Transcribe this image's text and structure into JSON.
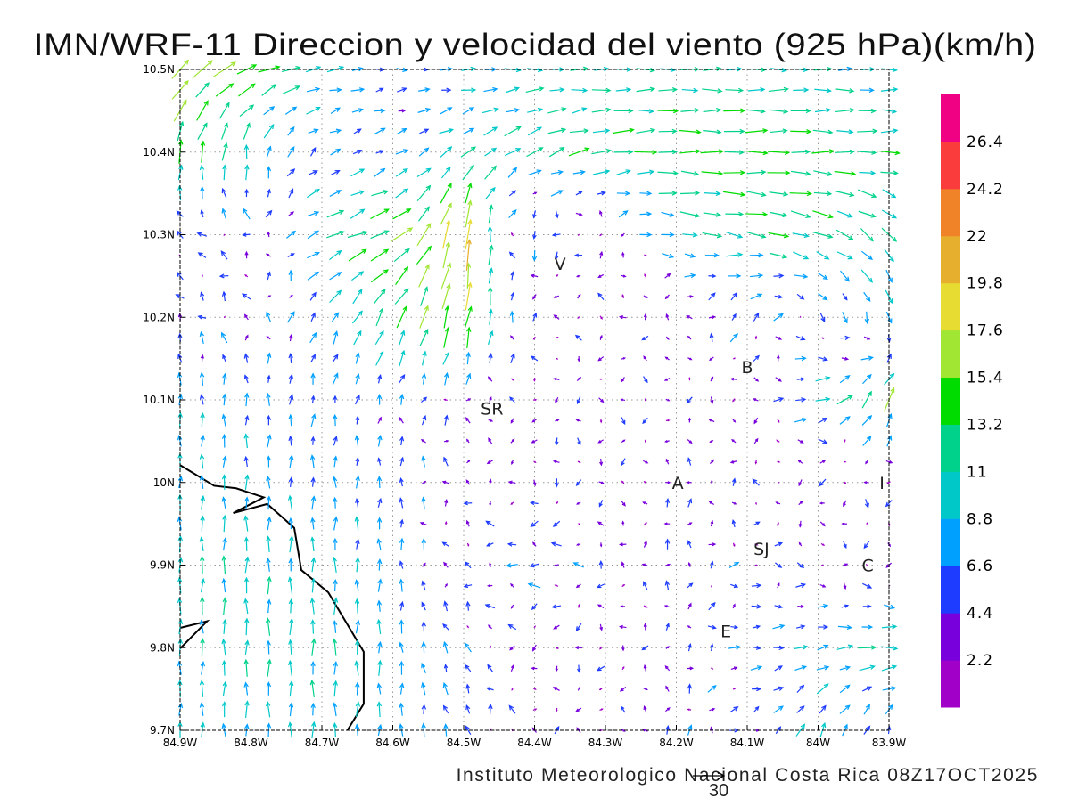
{
  "title": "IMN/WRF-11 Direccion y velocidad del viento (925 hPa)(km/h)",
  "footer": "Instituto Meteorologico Nacional Costa Rica  08Z17OCT2025",
  "reference_vector": {
    "label": "30",
    "speed": 30
  },
  "chart_data": {
    "type": "vector-field",
    "title": "IMN/WRF-11 Direccion y velocidad del viento (925 hPa)(km/h)",
    "xlim": [
      -84.9,
      -83.9
    ],
    "ylim": [
      9.7,
      10.5
    ],
    "x_ticks": [
      -84.9,
      -84.8,
      -84.7,
      -84.6,
      -84.5,
      -84.4,
      -84.3,
      -84.2,
      -84.1,
      -84.0,
      -83.9
    ],
    "x_tick_labels": [
      "84.9W",
      "84.8W",
      "84.7W",
      "84.6W",
      "84.5W",
      "84.4W",
      "84.3W",
      "84.2W",
      "84.1W",
      "84W",
      "83.9W"
    ],
    "y_ticks": [
      9.7,
      9.8,
      9.9,
      10.0,
      10.1,
      10.2,
      10.3,
      10.4,
      10.5
    ],
    "y_tick_labels": [
      "9.7N",
      "9.8N",
      "9.9N",
      "10N",
      "10.1N",
      "10.2N",
      "10.3N",
      "10.4N",
      "10.5N"
    ],
    "grid": true,
    "node_lons": [
      -84.9,
      -84.8,
      -84.7,
      -84.6,
      -84.5,
      -84.4,
      -84.3,
      -84.2,
      -84.1,
      -84.0,
      -83.9
    ],
    "node_lats": [
      10.5,
      10.4,
      10.3,
      10.2,
      10.1,
      10.0,
      9.9,
      9.8,
      9.7
    ],
    "u_kmh": [
      [
        12,
        14,
        10,
        5,
        8,
        10,
        10,
        11,
        11,
        10,
        9
      ],
      [
        2,
        1,
        5,
        6,
        8,
        10,
        13,
        13,
        14,
        13,
        12
      ],
      [
        -4,
        -3,
        10,
        14,
        2,
        -2,
        -2,
        10,
        12,
        12,
        8
      ],
      [
        -2,
        -2,
        4,
        6,
        3,
        -1,
        -1,
        -2,
        4,
        2,
        2
      ],
      [
        0,
        0,
        1,
        1,
        1,
        -1,
        0,
        0,
        -2,
        10,
        6
      ],
      [
        0,
        0,
        0,
        0,
        -2,
        -1,
        0,
        0,
        -1,
        -2,
        -1
      ],
      [
        0,
        0,
        0,
        0,
        -2,
        -6,
        -2,
        0,
        4,
        2,
        -1
      ],
      [
        0,
        0,
        0,
        0,
        -3,
        -1,
        -2,
        0,
        6,
        8,
        12
      ],
      [
        0,
        0,
        0,
        0,
        -2,
        0,
        -1,
        0,
        4,
        4,
        2
      ]
    ],
    "v_kmh": [
      [
        12,
        6,
        2,
        0,
        0,
        0,
        0,
        0,
        0,
        0,
        0
      ],
      [
        14,
        10,
        3,
        3,
        6,
        6,
        2,
        0,
        0,
        0,
        0
      ],
      [
        2,
        2,
        4,
        6,
        22,
        -6,
        2,
        -2,
        -2,
        -4,
        -8
      ],
      [
        4,
        3,
        6,
        12,
        16,
        2,
        1,
        1,
        6,
        -4,
        -8
      ],
      [
        8,
        7,
        6,
        5,
        3,
        -1,
        -2,
        -1,
        -2,
        2,
        14
      ],
      [
        9,
        8,
        7,
        6,
        2,
        -2,
        -3,
        3,
        2,
        -2,
        -3
      ],
      [
        10,
        10,
        9,
        7,
        1,
        0,
        2,
        4,
        0,
        -1,
        -2
      ],
      [
        10,
        10,
        10,
        8,
        5,
        -2,
        -3,
        3,
        0,
        2,
        0
      ],
      [
        9,
        9,
        9,
        8,
        6,
        2,
        1,
        4,
        2,
        8,
        6
      ]
    ],
    "colorbar": {
      "labels": [
        "2.2",
        "4.4",
        "6.6",
        "8.8",
        "11",
        "13.2",
        "15.4",
        "17.6",
        "19.8",
        "22",
        "24.2",
        "26.4"
      ],
      "thresholds": [
        2.2,
        4.4,
        6.6,
        8.8,
        11,
        13.2,
        15.4,
        17.6,
        19.8,
        22,
        24.2,
        26.4
      ],
      "colors": [
        "#a000c8",
        "#7800dc",
        "#1e3cff",
        "#00a0ff",
        "#00c8c8",
        "#00d28c",
        "#00dc00",
        "#a0e632",
        "#e6dc32",
        "#e6af2d",
        "#f08228",
        "#fa3c3c",
        "#f00082"
      ]
    },
    "places": [
      {
        "label": "V",
        "lon": -84.364,
        "lat": 10.265
      },
      {
        "label": "SR",
        "lon": -84.46,
        "lat": 10.09
      },
      {
        "label": "B",
        "lon": -84.1,
        "lat": 10.14
      },
      {
        "label": "A",
        "lon": -84.198,
        "lat": 10.0
      },
      {
        "label": "I",
        "lon": -83.91,
        "lat": 10.0
      },
      {
        "label": "SJ",
        "lon": -84.08,
        "lat": 9.92
      },
      {
        "label": "C",
        "lon": -83.93,
        "lat": 9.9
      },
      {
        "label": "E",
        "lon": -84.13,
        "lat": 9.82
      }
    ],
    "coastline": [
      [
        [
          -84.9,
          10.021
        ],
        [
          -84.852,
          9.996
        ],
        [
          -84.821,
          9.993
        ],
        [
          -84.782,
          9.982
        ],
        [
          -84.825,
          9.963
        ],
        [
          -84.777,
          9.974
        ],
        [
          -84.739,
          9.945
        ],
        [
          -84.729,
          9.894
        ],
        [
          -84.691,
          9.867
        ],
        [
          -84.641,
          9.795
        ],
        [
          -84.641,
          9.732
        ],
        [
          -84.664,
          9.7
        ]
      ],
      [
        [
          -84.9,
          9.824
        ],
        [
          -84.862,
          9.832
        ],
        [
          -84.9,
          9.799
        ]
      ]
    ]
  }
}
